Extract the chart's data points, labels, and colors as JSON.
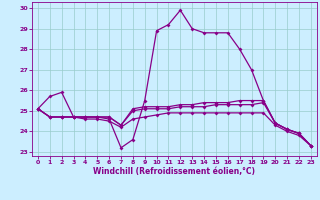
{
  "xlabel": "Windchill (Refroidissement éolien,°C)",
  "bg_color": "#cceeff",
  "grid_color": "#99cccc",
  "line_color": "#880088",
  "series": [
    [
      25.1,
      25.7,
      25.9,
      24.7,
      24.7,
      24.7,
      24.6,
      23.2,
      23.6,
      25.5,
      28.9,
      29.2,
      29.9,
      29.0,
      28.8,
      28.8,
      28.8,
      28.0,
      27.0,
      25.5,
      24.4,
      24.1,
      23.9,
      23.3
    ],
    [
      25.1,
      24.7,
      24.7,
      24.7,
      24.7,
      24.7,
      24.7,
      24.3,
      25.1,
      25.2,
      25.2,
      25.2,
      25.3,
      25.3,
      25.4,
      25.4,
      25.4,
      25.5,
      25.5,
      25.5,
      24.4,
      24.1,
      23.9,
      23.3
    ],
    [
      25.1,
      24.7,
      24.7,
      24.7,
      24.7,
      24.7,
      24.7,
      24.3,
      25.0,
      25.1,
      25.1,
      25.1,
      25.2,
      25.2,
      25.2,
      25.3,
      25.3,
      25.3,
      25.3,
      25.4,
      24.4,
      24.1,
      23.9,
      23.3
    ],
    [
      25.1,
      24.7,
      24.7,
      24.7,
      24.6,
      24.6,
      24.5,
      24.2,
      24.6,
      24.7,
      24.8,
      24.9,
      24.9,
      24.9,
      24.9,
      24.9,
      24.9,
      24.9,
      24.9,
      24.9,
      24.3,
      24.0,
      23.8,
      23.3
    ]
  ],
  "xlim": [
    -0.5,
    23.5
  ],
  "ylim": [
    22.8,
    30.3
  ],
  "yticks": [
    23,
    24,
    25,
    26,
    27,
    28,
    29,
    30
  ],
  "xticks": [
    0,
    1,
    2,
    3,
    4,
    5,
    6,
    7,
    8,
    9,
    10,
    11,
    12,
    13,
    14,
    15,
    16,
    17,
    18,
    19,
    20,
    21,
    22,
    23
  ],
  "tick_fontsize": 4.5,
  "xlabel_fontsize": 5.5,
  "linewidth": 0.9,
  "markersize": 2.0
}
